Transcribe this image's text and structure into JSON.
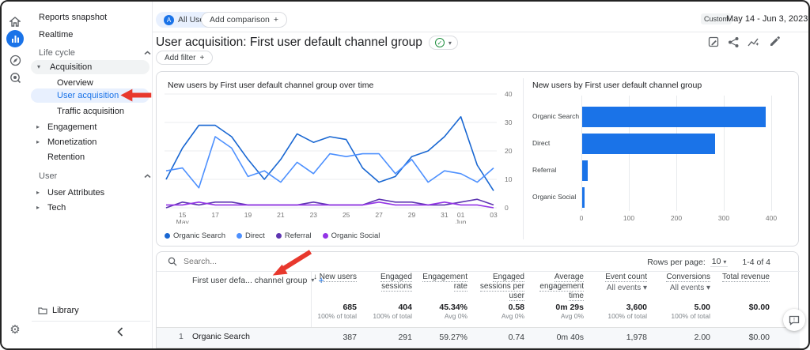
{
  "colors": {
    "primary": "#1a73e8",
    "active_item_bg": "#e8f0fe",
    "expanded_item_bg": "#f1f3f4",
    "annotation_arrow": "#e8382d",
    "bar": "#1a73e8"
  },
  "icons": {
    "rail": [
      "home-icon",
      "reports-icon",
      "explore-icon",
      "advertising-icon",
      "settings-gear-icon"
    ],
    "toolbar": [
      "edit-comparison-icon",
      "share-icon",
      "insights-icon",
      "edit-pencil-icon"
    ]
  },
  "sidebar": {
    "items": [
      "Reports snapshot",
      "Realtime"
    ],
    "sections": [
      {
        "label": "Life cycle",
        "items": [
          {
            "label": "Acquisition",
            "state": "expanded",
            "children": [
              "Overview",
              "User acquisition",
              "Traffic acquisition"
            ],
            "active_child": "User acquisition"
          },
          {
            "label": "Engagement",
            "state": "collapsed"
          },
          {
            "label": "Monetization",
            "state": "collapsed"
          },
          {
            "label": "Retention",
            "state": "leaf"
          }
        ]
      },
      {
        "label": "User",
        "items": [
          {
            "label": "User Attributes",
            "state": "collapsed"
          },
          {
            "label": "Tech",
            "state": "collapsed"
          }
        ]
      }
    ],
    "library": "Library"
  },
  "header": {
    "audience_chip": {
      "avatar": "A",
      "label": "All Users"
    },
    "add_comparison": "Add comparison",
    "add_comparison_plus": "+",
    "title": "User acquisition: First user default channel group",
    "add_filter": "Add filter",
    "add_filter_plus": "+",
    "date_range": {
      "tag": "Custom",
      "value": "May 14 - Jun 3, 2023"
    }
  },
  "chart_data": [
    {
      "type": "line",
      "title": "New users by First user default channel group over time",
      "x": [
        "14",
        "15",
        "16",
        "17",
        "18",
        "19",
        "20",
        "21",
        "22",
        "23",
        "24",
        "25",
        "26",
        "27",
        "28",
        "29",
        "30",
        "31",
        "01",
        "02",
        "03"
      ],
      "xticks": [
        {
          "index": 1,
          "label": "15",
          "sub": "May"
        },
        {
          "index": 3,
          "label": "17"
        },
        {
          "index": 5,
          "label": "19"
        },
        {
          "index": 7,
          "label": "21"
        },
        {
          "index": 9,
          "label": "23"
        },
        {
          "index": 11,
          "label": "25"
        },
        {
          "index": 13,
          "label": "27"
        },
        {
          "index": 15,
          "label": "29"
        },
        {
          "index": 17,
          "label": "31"
        },
        {
          "index": 18,
          "label": "01",
          "sub": "Jun"
        },
        {
          "index": 20,
          "label": "03"
        }
      ],
      "ylim": [
        0,
        40
      ],
      "yticks": [
        0,
        10,
        20,
        30,
        40
      ],
      "grid": true,
      "legend_position": "bottom",
      "series": [
        {
          "name": "Organic Search",
          "color": "#1967d2",
          "values": [
            10,
            21,
            29,
            29,
            25,
            17,
            10,
            17,
            26,
            23,
            25,
            24,
            14,
            9,
            11,
            18,
            20,
            25,
            32,
            15,
            6
          ]
        },
        {
          "name": "Direct",
          "color": "#4d90fe",
          "values": [
            13,
            14,
            7,
            25,
            21,
            11,
            13,
            9,
            16,
            12,
            19,
            18,
            19,
            19,
            12,
            17,
            9,
            13,
            12,
            9,
            14
          ]
        },
        {
          "name": "Referral",
          "color": "#5e35b1",
          "values": [
            0,
            2,
            1,
            2,
            2,
            1,
            1,
            1,
            1,
            2,
            1,
            1,
            1,
            3,
            2,
            2,
            1,
            1,
            2,
            3,
            1
          ]
        },
        {
          "name": "Organic Social",
          "color": "#9334e6",
          "values": [
            1,
            1,
            2,
            1,
            1,
            1,
            1,
            1,
            1,
            1,
            1,
            1,
            1,
            2,
            1,
            1,
            1,
            2,
            1,
            1,
            0
          ]
        }
      ]
    },
    {
      "type": "bar",
      "orientation": "horizontal",
      "title": "New users by First user default channel group",
      "categories": [
        "Organic Search",
        "Direct",
        "Referral",
        "Organic Social"
      ],
      "values": [
        387,
        280,
        12,
        5
      ],
      "xlim": [
        0,
        400
      ],
      "xticks": [
        0,
        100,
        200,
        300,
        400
      ],
      "bar_color": "#1a73e8"
    }
  ],
  "table": {
    "search_placeholder": "Search...",
    "rows_per_page_label": "Rows per page:",
    "rows_per_page_value": "10",
    "page_info": "1-4 of 4",
    "dimension_header": "First user defa... channel group",
    "columns": [
      {
        "lines": [
          "New users"
        ],
        "sorted": true
      },
      {
        "lines": [
          "Engaged",
          "sessions"
        ]
      },
      {
        "lines": [
          "Engagement",
          "rate"
        ]
      },
      {
        "lines": [
          "Engaged",
          "sessions per",
          "user"
        ]
      },
      {
        "lines": [
          "Average",
          "engagement",
          "time"
        ]
      },
      {
        "lines": [
          "Event count"
        ],
        "filter": "All events"
      },
      {
        "lines": [
          "Conversions"
        ],
        "filter": "All events"
      },
      {
        "lines": [
          "Total revenue"
        ]
      }
    ],
    "totals": [
      {
        "value": "685",
        "sub": "100% of total"
      },
      {
        "value": "404",
        "sub": "100% of total"
      },
      {
        "value": "45.34%",
        "sub": "Avg 0%"
      },
      {
        "value": "0.58",
        "sub": "Avg 0%"
      },
      {
        "value": "0m 29s",
        "sub": "Avg 0%"
      },
      {
        "value": "3,600",
        "sub": "100% of total"
      },
      {
        "value": "5.00",
        "sub": "100% of total"
      },
      {
        "value": "$0.00",
        "sub": ""
      }
    ],
    "rows": [
      {
        "index": "1",
        "dimension": "Organic Search",
        "values": [
          "387",
          "291",
          "59.27%",
          "0.74",
          "0m 40s",
          "1,978",
          "2.00",
          "$0.00"
        ]
      }
    ]
  }
}
